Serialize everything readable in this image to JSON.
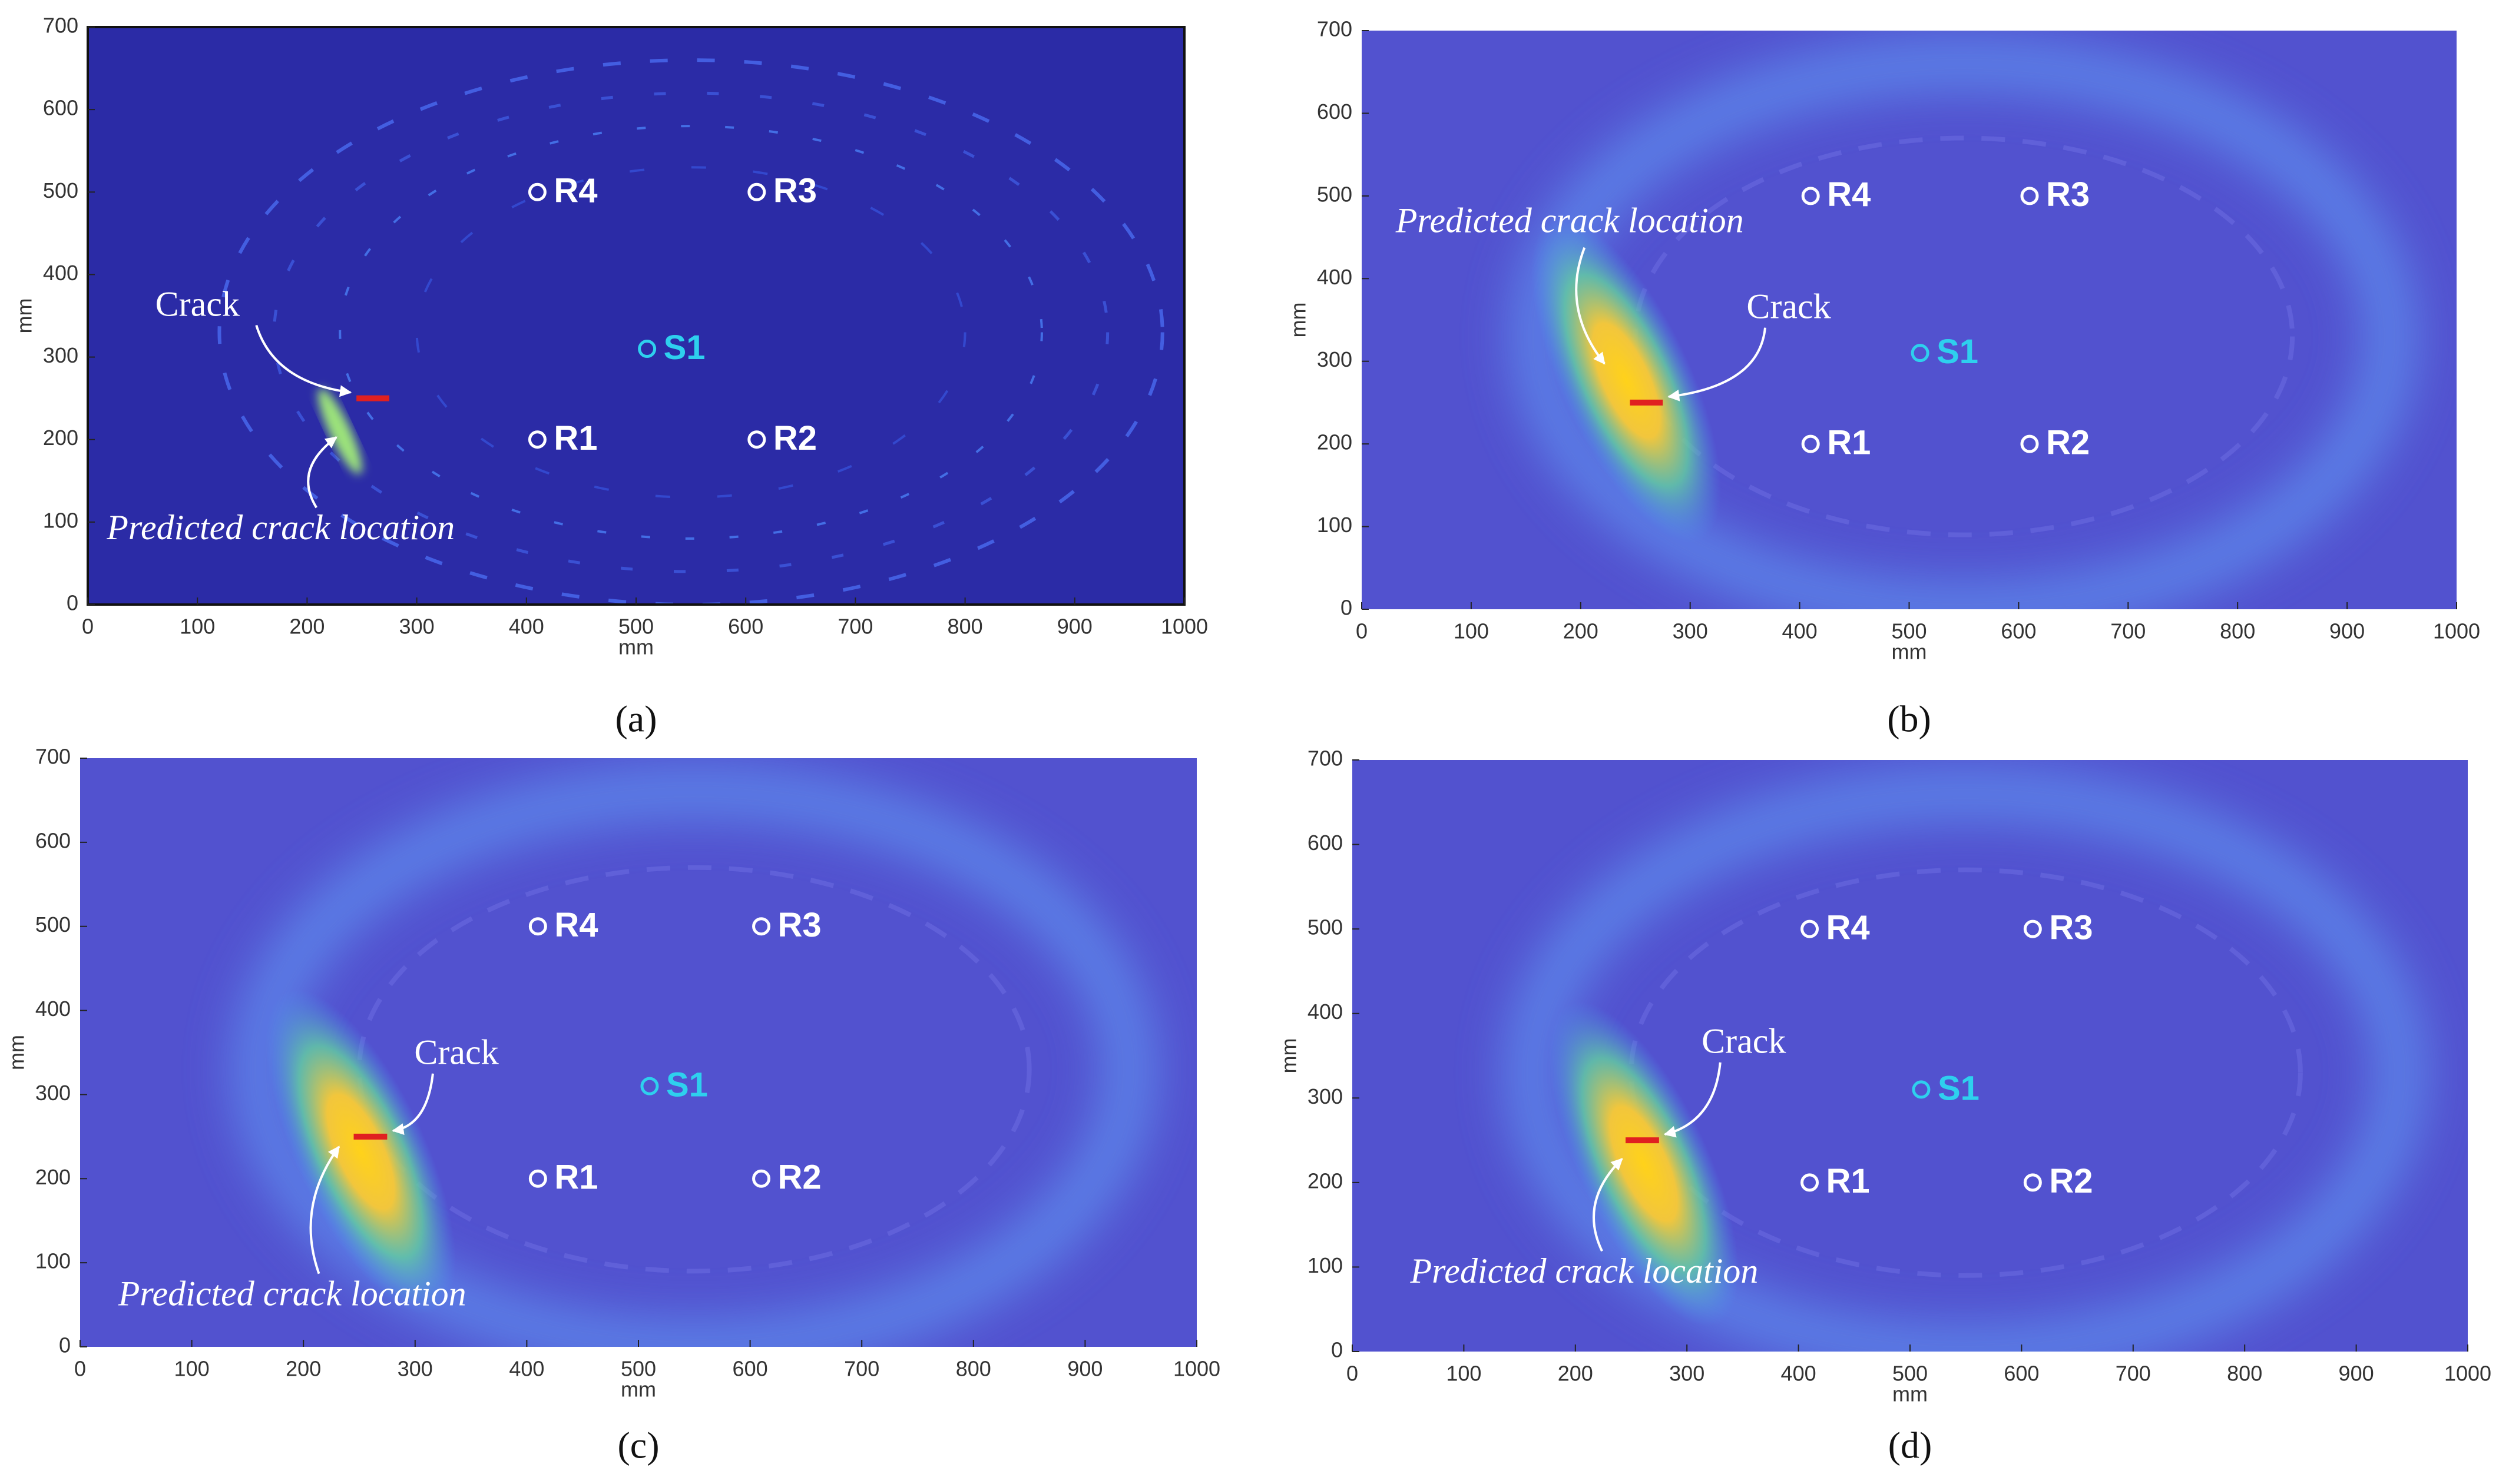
{
  "chart_data": [
    {
      "type": "heatmap",
      "caption": "(a)",
      "xlabel": "mm",
      "ylabel": "mm",
      "xlim": [
        0,
        1000
      ],
      "ylim": [
        0,
        700
      ],
      "xticks": [
        0,
        100,
        200,
        300,
        400,
        500,
        600,
        700,
        800,
        900,
        1000
      ],
      "yticks": [
        0,
        100,
        200,
        300,
        400,
        500,
        600,
        700
      ],
      "points": [
        {
          "label": "R4",
          "x": 410,
          "y": 500,
          "color": "#ffffff"
        },
        {
          "label": "R3",
          "x": 610,
          "y": 500,
          "color": "#ffffff"
        },
        {
          "label": "S1",
          "x": 510,
          "y": 310,
          "color": "#2ed0ee"
        },
        {
          "label": "R1",
          "x": 410,
          "y": 200,
          "color": "#ffffff"
        },
        {
          "label": "R2",
          "x": 610,
          "y": 200,
          "color": "#ffffff"
        }
      ],
      "crack": {
        "label": "Crack",
        "x": [
          245,
          275
        ],
        "y": 250,
        "color": "#e02020"
      },
      "predicted": {
        "label": "Predicted crack location",
        "x": 230,
        "y": 210
      }
    },
    {
      "type": "heatmap",
      "caption": "(b)",
      "xlabel": "mm",
      "ylabel": "mm",
      "xlim": [
        0,
        1000
      ],
      "ylim": [
        0,
        700
      ],
      "xticks": [
        0,
        100,
        200,
        300,
        400,
        500,
        600,
        700,
        800,
        900,
        1000
      ],
      "yticks": [
        0,
        100,
        200,
        300,
        400,
        500,
        600,
        700
      ],
      "points": [
        {
          "label": "R4",
          "x": 410,
          "y": 500,
          "color": "#ffffff"
        },
        {
          "label": "R3",
          "x": 610,
          "y": 500,
          "color": "#ffffff"
        },
        {
          "label": "S1",
          "x": 510,
          "y": 310,
          "color": "#2ed0ee"
        },
        {
          "label": "R1",
          "x": 410,
          "y": 200,
          "color": "#ffffff"
        },
        {
          "label": "R2",
          "x": 610,
          "y": 200,
          "color": "#ffffff"
        }
      ],
      "crack": {
        "label": "Crack",
        "x": [
          245,
          275
        ],
        "y": 250,
        "color": "#e02020"
      },
      "predicted": {
        "label": "Predicted crack location",
        "x": 225,
        "y": 290
      }
    },
    {
      "type": "heatmap",
      "caption": "(c)",
      "xlabel": "mm",
      "ylabel": "mm",
      "xlim": [
        0,
        1000
      ],
      "ylim": [
        0,
        700
      ],
      "xticks": [
        0,
        100,
        200,
        300,
        400,
        500,
        600,
        700,
        800,
        900,
        1000
      ],
      "yticks": [
        0,
        100,
        200,
        300,
        400,
        500,
        600,
        700
      ],
      "points": [
        {
          "label": "R4",
          "x": 410,
          "y": 500,
          "color": "#ffffff"
        },
        {
          "label": "R3",
          "x": 610,
          "y": 500,
          "color": "#ffffff"
        },
        {
          "label": "S1",
          "x": 510,
          "y": 310,
          "color": "#2ed0ee"
        },
        {
          "label": "R1",
          "x": 410,
          "y": 200,
          "color": "#ffffff"
        },
        {
          "label": "R2",
          "x": 610,
          "y": 200,
          "color": "#ffffff"
        }
      ],
      "crack": {
        "label": "Crack",
        "x": [
          245,
          275
        ],
        "y": 250,
        "color": "#e02020"
      },
      "predicted": {
        "label": "Predicted crack location",
        "x": 235,
        "y": 245
      }
    },
    {
      "type": "heatmap",
      "caption": "(d)",
      "xlabel": "mm",
      "ylabel": "mm",
      "xlim": [
        0,
        1000
      ],
      "ylim": [
        0,
        700
      ],
      "xticks": [
        0,
        100,
        200,
        300,
        400,
        500,
        600,
        700,
        800,
        900,
        1000
      ],
      "yticks": [
        0,
        100,
        200,
        300,
        400,
        500,
        600,
        700
      ],
      "points": [
        {
          "label": "R4",
          "x": 410,
          "y": 500,
          "color": "#ffffff"
        },
        {
          "label": "R3",
          "x": 610,
          "y": 500,
          "color": "#ffffff"
        },
        {
          "label": "S1",
          "x": 510,
          "y": 310,
          "color": "#2ed0ee"
        },
        {
          "label": "R1",
          "x": 410,
          "y": 200,
          "color": "#ffffff"
        },
        {
          "label": "R2",
          "x": 610,
          "y": 200,
          "color": "#ffffff"
        }
      ],
      "crack": {
        "label": "Crack",
        "x": [
          245,
          275
        ],
        "y": 250,
        "color": "#e02020"
      },
      "predicted": {
        "label": "Predicted crack location",
        "x": 245,
        "y": 235
      }
    }
  ]
}
